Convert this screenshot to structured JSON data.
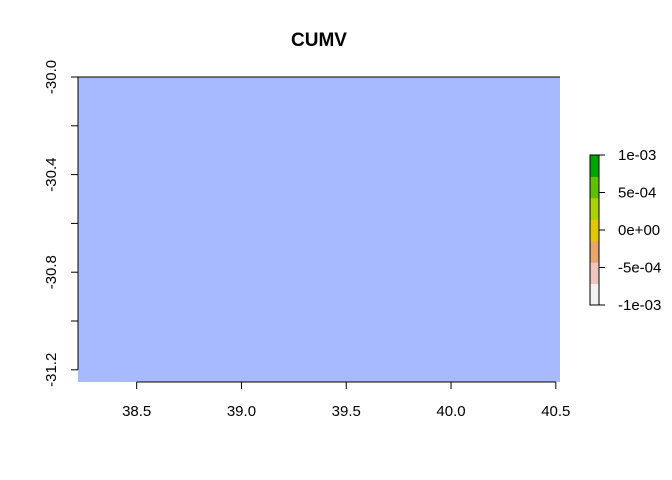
{
  "chart_data": {
    "type": "heatmap",
    "title": "CUMV",
    "xlabel": "",
    "ylabel": "",
    "xlim": [
      38.22,
      40.52
    ],
    "ylim": [
      -31.25,
      -30.0
    ],
    "x_ticks": [
      {
        "value": 38.5,
        "label": "38.5"
      },
      {
        "value": 39.0,
        "label": "39.0"
      },
      {
        "value": 39.5,
        "label": "39.5"
      },
      {
        "value": 40.0,
        "label": "40.0"
      },
      {
        "value": 40.5,
        "label": "40.5"
      }
    ],
    "y_ticks": [
      {
        "value": -30.0,
        "label": "-30.0"
      },
      {
        "value": -30.2,
        "label": ""
      },
      {
        "value": -30.4,
        "label": "-30.4"
      },
      {
        "value": -30.6,
        "label": ""
      },
      {
        "value": -30.8,
        "label": "-30.8"
      },
      {
        "value": -31.0,
        "label": ""
      },
      {
        "value": -31.2,
        "label": "-31.2"
      }
    ],
    "raster": {
      "xmin": 38.22,
      "xmax": 40.52,
      "ymin": -31.25,
      "ymax": -30.0,
      "value": 0,
      "fill_color": "#a8baff"
    },
    "legend": {
      "placement": "right",
      "min": -0.001,
      "max": 0.001,
      "ticks": [
        {
          "value": 0.001,
          "label": "1e-03"
        },
        {
          "value": 0.0005,
          "label": "5e-04"
        },
        {
          "value": 0.0,
          "label": "0e+00"
        },
        {
          "value": -0.0005,
          "label": "-5e-04"
        },
        {
          "value": -0.001,
          "label": "-1e-03"
        }
      ],
      "colors": [
        "#f2f2f2",
        "#ecc6bf",
        "#e8a56c",
        "#e3c800",
        "#aad200",
        "#5fc000",
        "#00a600"
      ]
    },
    "grid": false
  }
}
